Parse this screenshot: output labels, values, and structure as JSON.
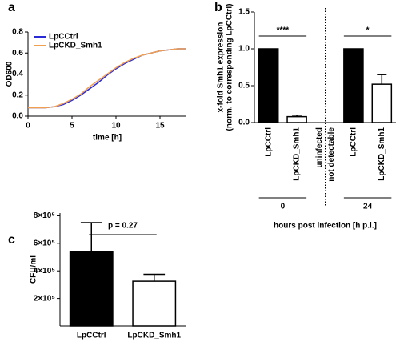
{
  "chart_data": [
    {
      "type": "line",
      "title": "a",
      "xlabel": "time [h]",
      "ylabel": "OD600",
      "x": [
        0,
        1,
        2,
        3,
        4,
        5,
        6,
        7,
        8,
        9,
        10,
        11,
        12,
        13,
        14,
        15,
        16,
        17,
        18
      ],
      "series": [
        {
          "name": "LpCCtrl",
          "color": "#2b2bd6",
          "values": [
            0.08,
            0.08,
            0.08,
            0.09,
            0.11,
            0.15,
            0.2,
            0.26,
            0.32,
            0.39,
            0.45,
            0.5,
            0.54,
            0.58,
            0.6,
            0.62,
            0.63,
            0.64,
            0.64
          ]
        },
        {
          "name": "LpCKD_Smh1",
          "color": "#f0a050",
          "values": [
            0.08,
            0.08,
            0.08,
            0.09,
            0.12,
            0.16,
            0.21,
            0.28,
            0.34,
            0.4,
            0.46,
            0.51,
            0.55,
            0.58,
            0.6,
            0.62,
            0.63,
            0.64,
            0.64
          ]
        }
      ],
      "xlim": [
        0,
        18
      ],
      "xticks": [
        0,
        5,
        10,
        15
      ],
      "ylim": [
        0,
        0.8
      ],
      "yticks": [
        {
          "value": 0,
          "label": "0.0"
        },
        {
          "value": 0.2,
          "label": "0.2"
        },
        {
          "value": 0.4,
          "label": "0.4"
        },
        {
          "value": 0.6,
          "label": "0.6"
        },
        {
          "value": 0.8,
          "label": "0.8"
        }
      ]
    },
    {
      "type": "bar",
      "title": "b",
      "xlabel": "hours post infection [h p.i.]",
      "ylabel": [
        "x-fold Smh1 expression",
        "(norm. to corresponding LpCCtrl)"
      ],
      "categories": [
        "LpCCtrl",
        "LpCKD_Smh1",
        "uninfected",
        "LpCCtrl",
        "LpCKD_Smh1"
      ],
      "values": [
        1,
        0.08,
        null,
        1,
        0.52
      ],
      "errors": [
        null,
        0.02,
        null,
        null,
        0.13
      ],
      "bar_colors": [
        "#000000",
        "#ffffff",
        null,
        "#000000",
        "#ffffff"
      ],
      "groups": [
        {
          "label": "0",
          "start": 0,
          "end": 1
        },
        {
          "label": "24",
          "start": 3,
          "end": 4
        }
      ],
      "annotations": [
        "****",
        "*",
        "not detectable"
      ],
      "ylim": [
        0,
        1.5
      ],
      "yticks": [
        {
          "value": 0,
          "label": "0.0"
        },
        {
          "value": 0.5,
          "label": "0.5"
        },
        {
          "value": 1,
          "label": "1.0"
        },
        {
          "value": 1.5,
          "label": "1.5"
        }
      ]
    },
    {
      "type": "bar",
      "title": "c",
      "ylabel": "CFU/ml",
      "categories": [
        "LpCCtrl",
        "LpCKD_Smh1"
      ],
      "values": [
        540000,
        325000
      ],
      "errors": [
        210000,
        50000
      ],
      "bar_colors": [
        "#000000",
        "#ffffff"
      ],
      "annotations": [
        "p = 0.27"
      ],
      "ylim": [
        0,
        820000
      ],
      "yticks": [
        {
          "value": 200000,
          "label": "2×10⁵"
        },
        {
          "value": 400000,
          "label": "4×10⁵"
        },
        {
          "value": 600000,
          "label": "6×10⁵"
        },
        {
          "value": 800000,
          "label": "8×10⁵"
        }
      ]
    }
  ]
}
